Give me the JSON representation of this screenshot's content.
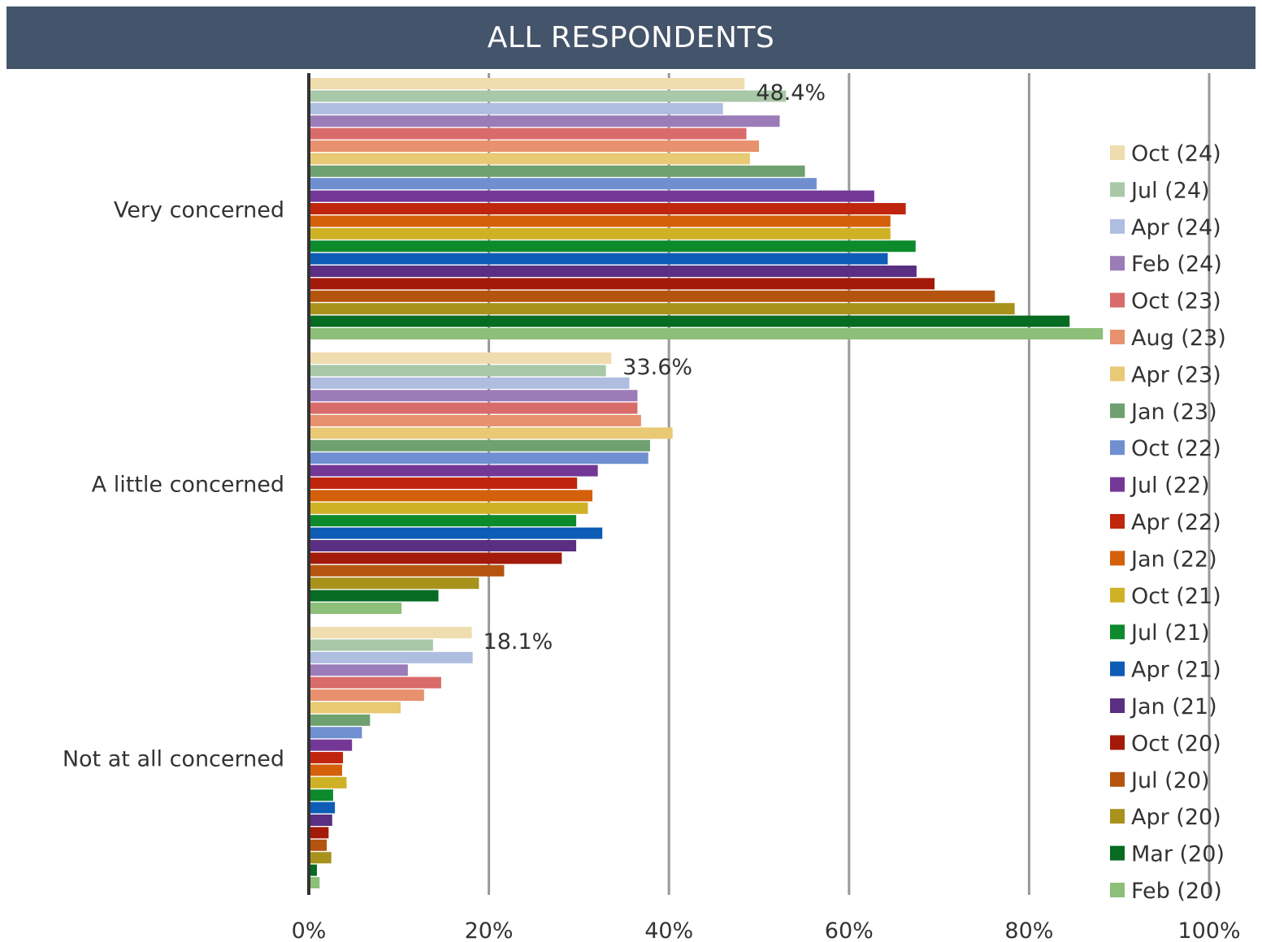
{
  "header": {
    "title": "ALL RESPONDENTS"
  },
  "chart_data": {
    "type": "bar",
    "orientation": "horizontal",
    "categories": [
      "Very concerned",
      "A little concerned",
      "Not at all concerned"
    ],
    "x_ticks": [
      "0%",
      "20%",
      "40%",
      "60%",
      "80%",
      "100%"
    ],
    "xlim": [
      0,
      100
    ],
    "grid": true,
    "legend_position": "right",
    "series": [
      {
        "name": "Oct (24)",
        "color": "#efdcaf",
        "values": [
          48.4,
          33.6,
          18.1
        ],
        "labels": [
          "48.4%",
          "33.6%",
          "18.1%"
        ]
      },
      {
        "name": "Jul (24)",
        "color": "#a8c8a8",
        "values": [
          53.0,
          33.0,
          13.8
        ]
      },
      {
        "name": "Apr (24)",
        "color": "#aebde0",
        "values": [
          46.0,
          35.6,
          18.2
        ]
      },
      {
        "name": "Feb (24)",
        "color": "#9b7cb8",
        "values": [
          52.3,
          36.5,
          11.0
        ]
      },
      {
        "name": "Oct (23)",
        "color": "#d96b6b",
        "values": [
          48.6,
          36.5,
          14.7
        ]
      },
      {
        "name": "Aug (23)",
        "color": "#e8916e",
        "values": [
          50.0,
          36.9,
          12.8
        ]
      },
      {
        "name": "Apr (23)",
        "color": "#e8c974",
        "values": [
          49.0,
          40.4,
          10.2
        ]
      },
      {
        "name": "Jan (23)",
        "color": "#6fa070",
        "values": [
          55.1,
          37.9,
          6.8
        ]
      },
      {
        "name": "Oct (22)",
        "color": "#6f8fd0",
        "values": [
          56.4,
          37.7,
          5.9
        ]
      },
      {
        "name": "Jul (22)",
        "color": "#733896",
        "values": [
          62.8,
          32.1,
          4.8
        ]
      },
      {
        "name": "Apr (22)",
        "color": "#c0260e",
        "values": [
          66.3,
          29.8,
          3.8
        ]
      },
      {
        "name": "Jan (22)",
        "color": "#d4600a",
        "values": [
          64.6,
          31.5,
          3.7
        ]
      },
      {
        "name": "Oct (21)",
        "color": "#cfb126",
        "values": [
          64.6,
          31.0,
          4.2
        ]
      },
      {
        "name": "Jul (21)",
        "color": "#0d8a2c",
        "values": [
          67.4,
          29.7,
          2.7
        ]
      },
      {
        "name": "Apr (21)",
        "color": "#0d5cb5",
        "values": [
          64.3,
          32.6,
          2.9
        ]
      },
      {
        "name": "Jan (21)",
        "color": "#5a2e82",
        "values": [
          67.5,
          29.7,
          2.6
        ]
      },
      {
        "name": "Oct (20)",
        "color": "#a31a0a",
        "values": [
          69.5,
          28.1,
          2.2
        ]
      },
      {
        "name": "Jul (20)",
        "color": "#b5540f",
        "values": [
          76.2,
          21.7,
          2.0
        ]
      },
      {
        "name": "Apr (20)",
        "color": "#a8921c",
        "values": [
          78.4,
          18.9,
          2.5
        ]
      },
      {
        "name": "Mar (20)",
        "color": "#076b22",
        "values": [
          84.5,
          14.4,
          0.9
        ]
      },
      {
        "name": "Feb (20)",
        "color": "#8cbf78",
        "values": [
          88.2,
          10.3,
          1.2
        ]
      }
    ]
  }
}
